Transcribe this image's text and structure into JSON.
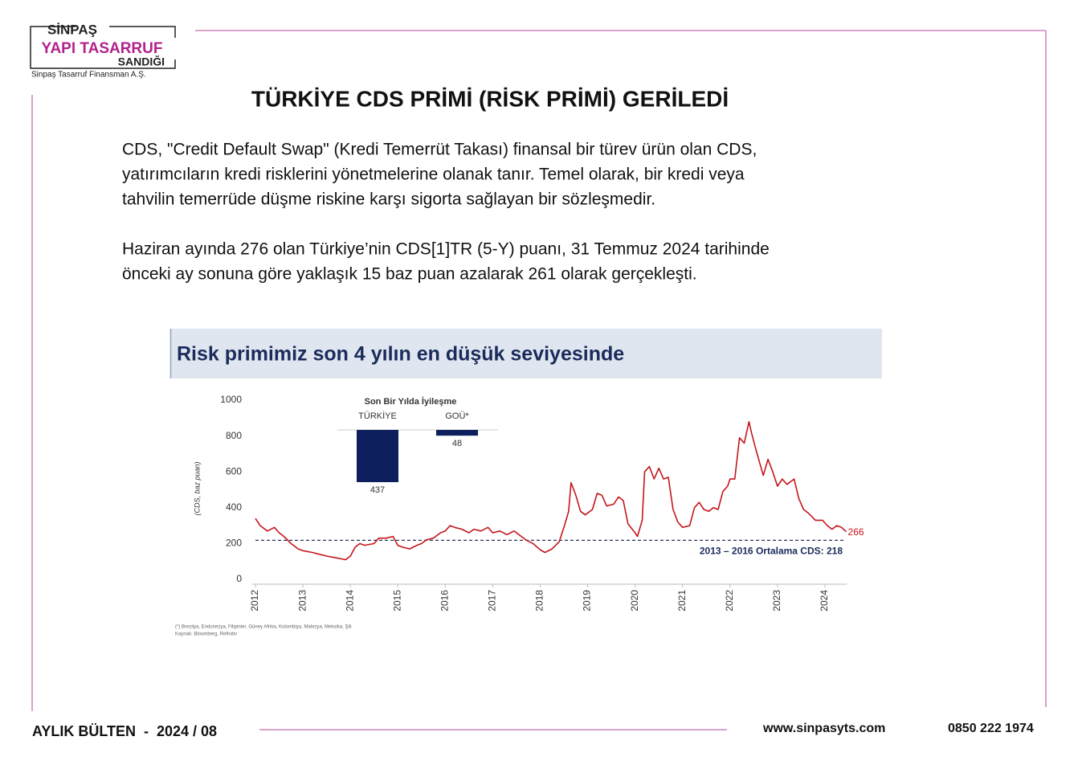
{
  "header": {
    "logo": {
      "brand": "SİNPAŞ",
      "line1": "YAPI TASARRUF",
      "line2": "SANDIĞI",
      "company": "Sinpaş Tasarruf Finansman A.Ş."
    }
  },
  "title": "TÜRKİYE CDS PRİMİ (RİSK PRİMİ) GERİLEDİ",
  "paragraphs": [
    [
      "CDS, \"Credit Default Swap\" (Kredi Temerrüt Takası) finansal bir türev ürün olan CDS,",
      "yatırımcıların kredi risklerini yönetmelerine olanak tanır. Temel olarak, bir kredi veya",
      "tahvilin temerrüde düşme riskine karşı sigorta sağlayan bir sözleşmedir."
    ],
    [
      "Haziran ayında 276 olan Türkiye’nin CDS[1]TR (5-Y) puanı, 31 Temmuz 2024 tarihinde",
      "önceki ay sonuna göre yaklaşık 15 baz puan azalarak 261 olarak gerçekleşti."
    ]
  ],
  "chart_data": {
    "type": "line",
    "title": "Risk primimiz son 4 yılın en düşük seviyesinde",
    "y_label": "(CDS, baz puan)",
    "x": [
      2012.0,
      2012.1,
      2012.25,
      2012.4,
      2012.5,
      2012.6,
      2012.75,
      2012.9,
      2013.0,
      2013.2,
      2013.35,
      2013.5,
      2013.7,
      2013.9,
      2014.0,
      2014.1,
      2014.2,
      2014.3,
      2014.5,
      2014.6,
      2014.75,
      2014.9,
      2015.0,
      2015.1,
      2015.25,
      2015.4,
      2015.5,
      2015.6,
      2015.75,
      2015.9,
      2016.0,
      2016.1,
      2016.2,
      2016.35,
      2016.5,
      2016.6,
      2016.75,
      2016.9,
      2017.0,
      2017.15,
      2017.3,
      2017.45,
      2017.55,
      2017.7,
      2017.85,
      2018.0,
      2018.1,
      2018.25,
      2018.4,
      2018.5,
      2018.6,
      2018.65,
      2018.75,
      2018.85,
      2018.95,
      2019.1,
      2019.2,
      2019.3,
      2019.4,
      2019.55,
      2019.65,
      2019.75,
      2019.85,
      2020.0,
      2020.05,
      2020.15,
      2020.2,
      2020.3,
      2020.4,
      2020.5,
      2020.6,
      2020.7,
      2020.8,
      2020.9,
      2021.0,
      2021.15,
      2021.25,
      2021.35,
      2021.45,
      2021.55,
      2021.65,
      2021.75,
      2021.85,
      2021.95,
      2022.0,
      2022.1,
      2022.2,
      2022.3,
      2022.4,
      2022.45,
      2022.55,
      2022.7,
      2022.8,
      2022.9,
      2023.0,
      2023.1,
      2023.2,
      2023.35,
      2023.45,
      2023.55,
      2023.65,
      2023.8,
      2023.95,
      2024.05,
      2024.15,
      2024.25,
      2024.35,
      2024.45
    ],
    "series": [
      {
        "color": "#c3161c",
        "values": [
          340,
          300,
          270,
          290,
          260,
          240,
          200,
          170,
          160,
          150,
          140,
          130,
          120,
          110,
          130,
          180,
          200,
          190,
          200,
          230,
          230,
          240,
          190,
          180,
          170,
          190,
          200,
          220,
          230,
          260,
          270,
          300,
          290,
          280,
          260,
          280,
          270,
          290,
          260,
          270,
          250,
          270,
          250,
          220,
          200,
          165,
          150,
          170,
          210,
          290,
          380,
          540,
          470,
          380,
          360,
          390,
          480,
          470,
          410,
          420,
          460,
          440,
          310,
          260,
          240,
          330,
          600,
          630,
          560,
          620,
          560,
          570,
          390,
          320,
          290,
          300,
          400,
          430,
          390,
          380,
          400,
          390,
          490,
          520,
          560,
          560,
          790,
          760,
          880,
          820,
          720,
          580,
          670,
          600,
          520,
          560,
          530,
          560,
          450,
          390,
          370,
          330,
          330,
          300,
          280,
          300,
          290,
          266
        ]
      }
    ],
    "xlim": [
      2012,
      2024.6
    ],
    "xticks": [
      2012,
      2013,
      2014,
      2015,
      2016,
      2017,
      2018,
      2019,
      2020,
      2021,
      2022,
      2023,
      2024
    ],
    "ylim": [
      0,
      1000
    ],
    "yticks": [
      0,
      200,
      400,
      600,
      800,
      1000
    ],
    "reference": {
      "value": 218,
      "label": "2013 – 2016 Ortalama CDS: 218"
    },
    "end_label": 266,
    "inset": {
      "type": "bar",
      "title": "Son Bir Yılda İyileşme",
      "categories": [
        "TÜRKİYE",
        "GOÜ*"
      ],
      "values": [
        437,
        48
      ],
      "color": "#0d1f5c"
    },
    "notes": [
      "(*) Brezilya, Endonezya, Filipinler, Güney Afrika, Kolombiya, Malezya, Meksika, Şili",
      "Kaynak: Bloomberg, Refinitiv"
    ]
  },
  "footer": {
    "bulletin": "AYLIK BÜLTEN  -  2024 / 08",
    "website": "www.sinpasyts.com",
    "phone": "0850 222 1974"
  }
}
